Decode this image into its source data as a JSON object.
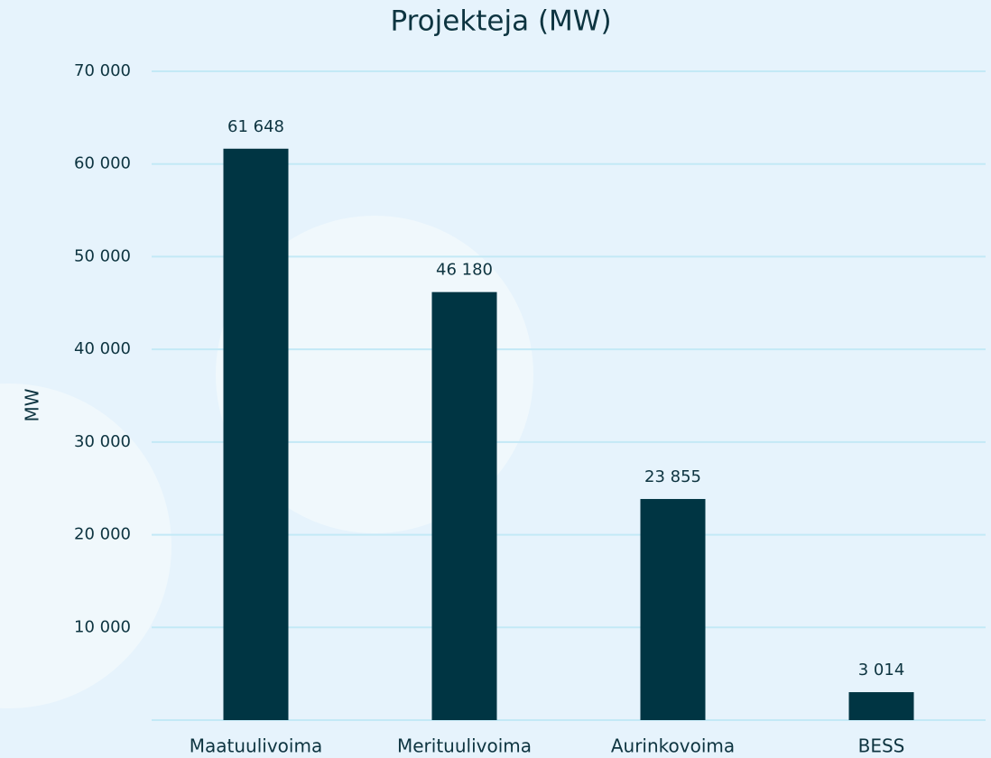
{
  "chart_data": {
    "type": "bar",
    "title": "Projekteja (MW)",
    "y_label": "MW",
    "categories": [
      "Maatuulivoima",
      "Merituulivoima",
      "Aurinkovoima",
      "BESS"
    ],
    "values": [
      61648,
      46180,
      23855,
      3014
    ],
    "value_labels": [
      "61 648",
      "46 180",
      "23 855",
      "3 014"
    ],
    "color": "#003543",
    "ylim": [
      0,
      70000
    ],
    "yticks": [
      {
        "value": 10000,
        "label": "10 000"
      },
      {
        "value": 20000,
        "label": "20 000"
      },
      {
        "value": 30000,
        "label": "30 000"
      },
      {
        "value": 40000,
        "label": "40 000"
      },
      {
        "value": 50000,
        "label": "50 000"
      },
      {
        "value": 60000,
        "label": "60 000"
      },
      {
        "value": 70000,
        "label": "70 000"
      }
    ],
    "grid": true
  }
}
